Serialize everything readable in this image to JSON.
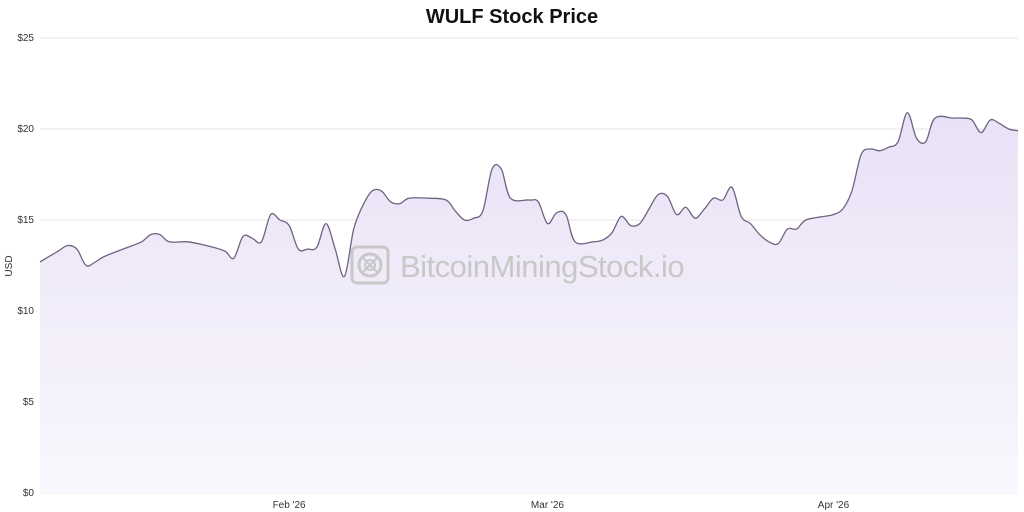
{
  "colors": {
    "line": "#6f6380",
    "fill_top": "#e9e1f6",
    "fill_bottom": "#f9f7fd",
    "grid": "#e6e6e6",
    "watermark": "#c8c8c8"
  },
  "watermark": {
    "text": "BitcoinMiningStock.io",
    "icon": "bitcoin-mining-chip-logo"
  },
  "chart_data": {
    "type": "area",
    "title": "WULF Stock Price",
    "xlabel": "",
    "ylabel": "USD",
    "ylim": [
      0,
      25
    ],
    "y_ticks": [
      "$0",
      "$5",
      "$10",
      "$15",
      "$20",
      "$25"
    ],
    "x_ticks": [
      {
        "label": "Feb '26",
        "date": "2026-02-01"
      },
      {
        "label": "Mar '26",
        "date": "2026-03-01"
      },
      {
        "label": "Apr '26",
        "date": "2026-04-01"
      }
    ],
    "grid": true,
    "legend": "none",
    "series": [
      {
        "points": [
          [
            "2026-01-05",
            12.7
          ],
          [
            "2026-01-07",
            13.3
          ],
          [
            "2026-01-08",
            13.6
          ],
          [
            "2026-01-09",
            13.4
          ],
          [
            "2026-01-10",
            12.5
          ],
          [
            "2026-01-11",
            12.7
          ],
          [
            "2026-01-12",
            13.0
          ],
          [
            "2026-01-14",
            13.4
          ],
          [
            "2026-01-16",
            13.8
          ],
          [
            "2026-01-17",
            14.2
          ],
          [
            "2026-01-18",
            14.2
          ],
          [
            "2026-01-19",
            13.8
          ],
          [
            "2026-01-21",
            13.8
          ],
          [
            "2026-01-23",
            13.6
          ],
          [
            "2026-01-25",
            13.3
          ],
          [
            "2026-01-26",
            12.9
          ],
          [
            "2026-01-27",
            14.1
          ],
          [
            "2026-01-28",
            14.0
          ],
          [
            "2026-01-29",
            13.8
          ],
          [
            "2026-01-30",
            15.3
          ],
          [
            "2026-01-31",
            15.0
          ],
          [
            "2026-02-01",
            14.7
          ],
          [
            "2026-02-02",
            13.4
          ],
          [
            "2026-02-03",
            13.4
          ],
          [
            "2026-02-04",
            13.5
          ],
          [
            "2026-02-05",
            14.8
          ],
          [
            "2026-02-06",
            13.4
          ],
          [
            "2026-02-07",
            11.9
          ],
          [
            "2026-02-08",
            14.5
          ],
          [
            "2026-02-09",
            15.8
          ],
          [
            "2026-02-10",
            16.6
          ],
          [
            "2026-02-11",
            16.6
          ],
          [
            "2026-02-12",
            16.0
          ],
          [
            "2026-02-13",
            15.9
          ],
          [
            "2026-02-14",
            16.2
          ],
          [
            "2026-02-16",
            16.2
          ],
          [
            "2026-02-18",
            16.1
          ],
          [
            "2026-02-19",
            15.5
          ],
          [
            "2026-02-20",
            15.0
          ],
          [
            "2026-02-21",
            15.1
          ],
          [
            "2026-02-22",
            15.5
          ],
          [
            "2026-02-23",
            17.8
          ],
          [
            "2026-02-24",
            17.8
          ],
          [
            "2026-02-25",
            16.2
          ],
          [
            "2026-02-27",
            16.1
          ],
          [
            "2026-02-28",
            16.0
          ],
          [
            "2026-03-01",
            14.8
          ],
          [
            "2026-03-02",
            15.4
          ],
          [
            "2026-03-03",
            15.3
          ],
          [
            "2026-03-04",
            13.8
          ],
          [
            "2026-03-06",
            13.8
          ],
          [
            "2026-03-07",
            13.9
          ],
          [
            "2026-03-08",
            14.3
          ],
          [
            "2026-03-09",
            15.2
          ],
          [
            "2026-03-10",
            14.7
          ],
          [
            "2026-03-11",
            14.8
          ],
          [
            "2026-03-12",
            15.6
          ],
          [
            "2026-03-13",
            16.4
          ],
          [
            "2026-03-14",
            16.3
          ],
          [
            "2026-03-15",
            15.3
          ],
          [
            "2026-03-16",
            15.7
          ],
          [
            "2026-03-17",
            15.1
          ],
          [
            "2026-03-18",
            15.6
          ],
          [
            "2026-03-19",
            16.2
          ],
          [
            "2026-03-20",
            16.1
          ],
          [
            "2026-03-21",
            16.8
          ],
          [
            "2026-03-22",
            15.2
          ],
          [
            "2026-03-23",
            14.8
          ],
          [
            "2026-03-24",
            14.2
          ],
          [
            "2026-03-25",
            13.8
          ],
          [
            "2026-03-26",
            13.7
          ],
          [
            "2026-03-27",
            14.5
          ],
          [
            "2026-03-28",
            14.5
          ],
          [
            "2026-03-29",
            15.0
          ],
          [
            "2026-03-31",
            15.2
          ],
          [
            "2026-04-01",
            15.3
          ],
          [
            "2026-04-02",
            15.6
          ],
          [
            "2026-04-03",
            16.6
          ],
          [
            "2026-04-04",
            18.6
          ],
          [
            "2026-04-05",
            18.9
          ],
          [
            "2026-04-06",
            18.8
          ],
          [
            "2026-04-07",
            19.0
          ],
          [
            "2026-04-08",
            19.3
          ],
          [
            "2026-04-09",
            20.9
          ],
          [
            "2026-04-10",
            19.5
          ],
          [
            "2026-04-11",
            19.3
          ],
          [
            "2026-04-12",
            20.6
          ],
          [
            "2026-04-14",
            20.6
          ],
          [
            "2026-04-15",
            20.6
          ],
          [
            "2026-04-16",
            20.5
          ],
          [
            "2026-04-17",
            19.8
          ],
          [
            "2026-04-18",
            20.5
          ],
          [
            "2026-04-19",
            20.3
          ],
          [
            "2026-04-20",
            20.0
          ],
          [
            "2026-04-21",
            19.9
          ]
        ]
      }
    ]
  }
}
